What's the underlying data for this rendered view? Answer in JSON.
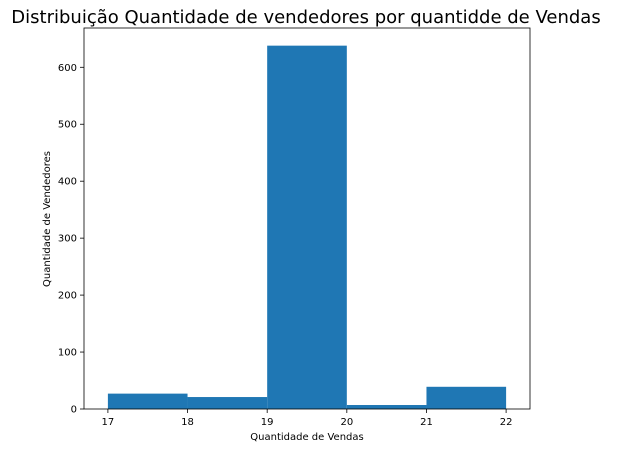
{
  "chart_data": {
    "type": "bar",
    "title": "Distribuição Quantidade de vendedores por quantidde de Vendas",
    "xlabel": "Quantidade de Vendas",
    "ylabel": "Quantidade de Vendedores",
    "xlim": [
      16.7,
      22.3
    ],
    "ylim": [
      0,
      669
    ],
    "xticks": [
      17,
      18,
      19,
      20,
      21,
      22
    ],
    "yticks": [
      0,
      100,
      200,
      300,
      400,
      500,
      600
    ],
    "bins": [
      {
        "x0": 17,
        "x1": 18,
        "value": 27
      },
      {
        "x0": 18,
        "x1": 19,
        "value": 21
      },
      {
        "x0": 19,
        "x1": 20,
        "value": 638
      },
      {
        "x0": 20,
        "x1": 21,
        "value": 7
      },
      {
        "x0": 21,
        "x1": 22,
        "value": 39
      }
    ],
    "bar_color": "#1f77b4",
    "grid": false,
    "legend": "none"
  }
}
